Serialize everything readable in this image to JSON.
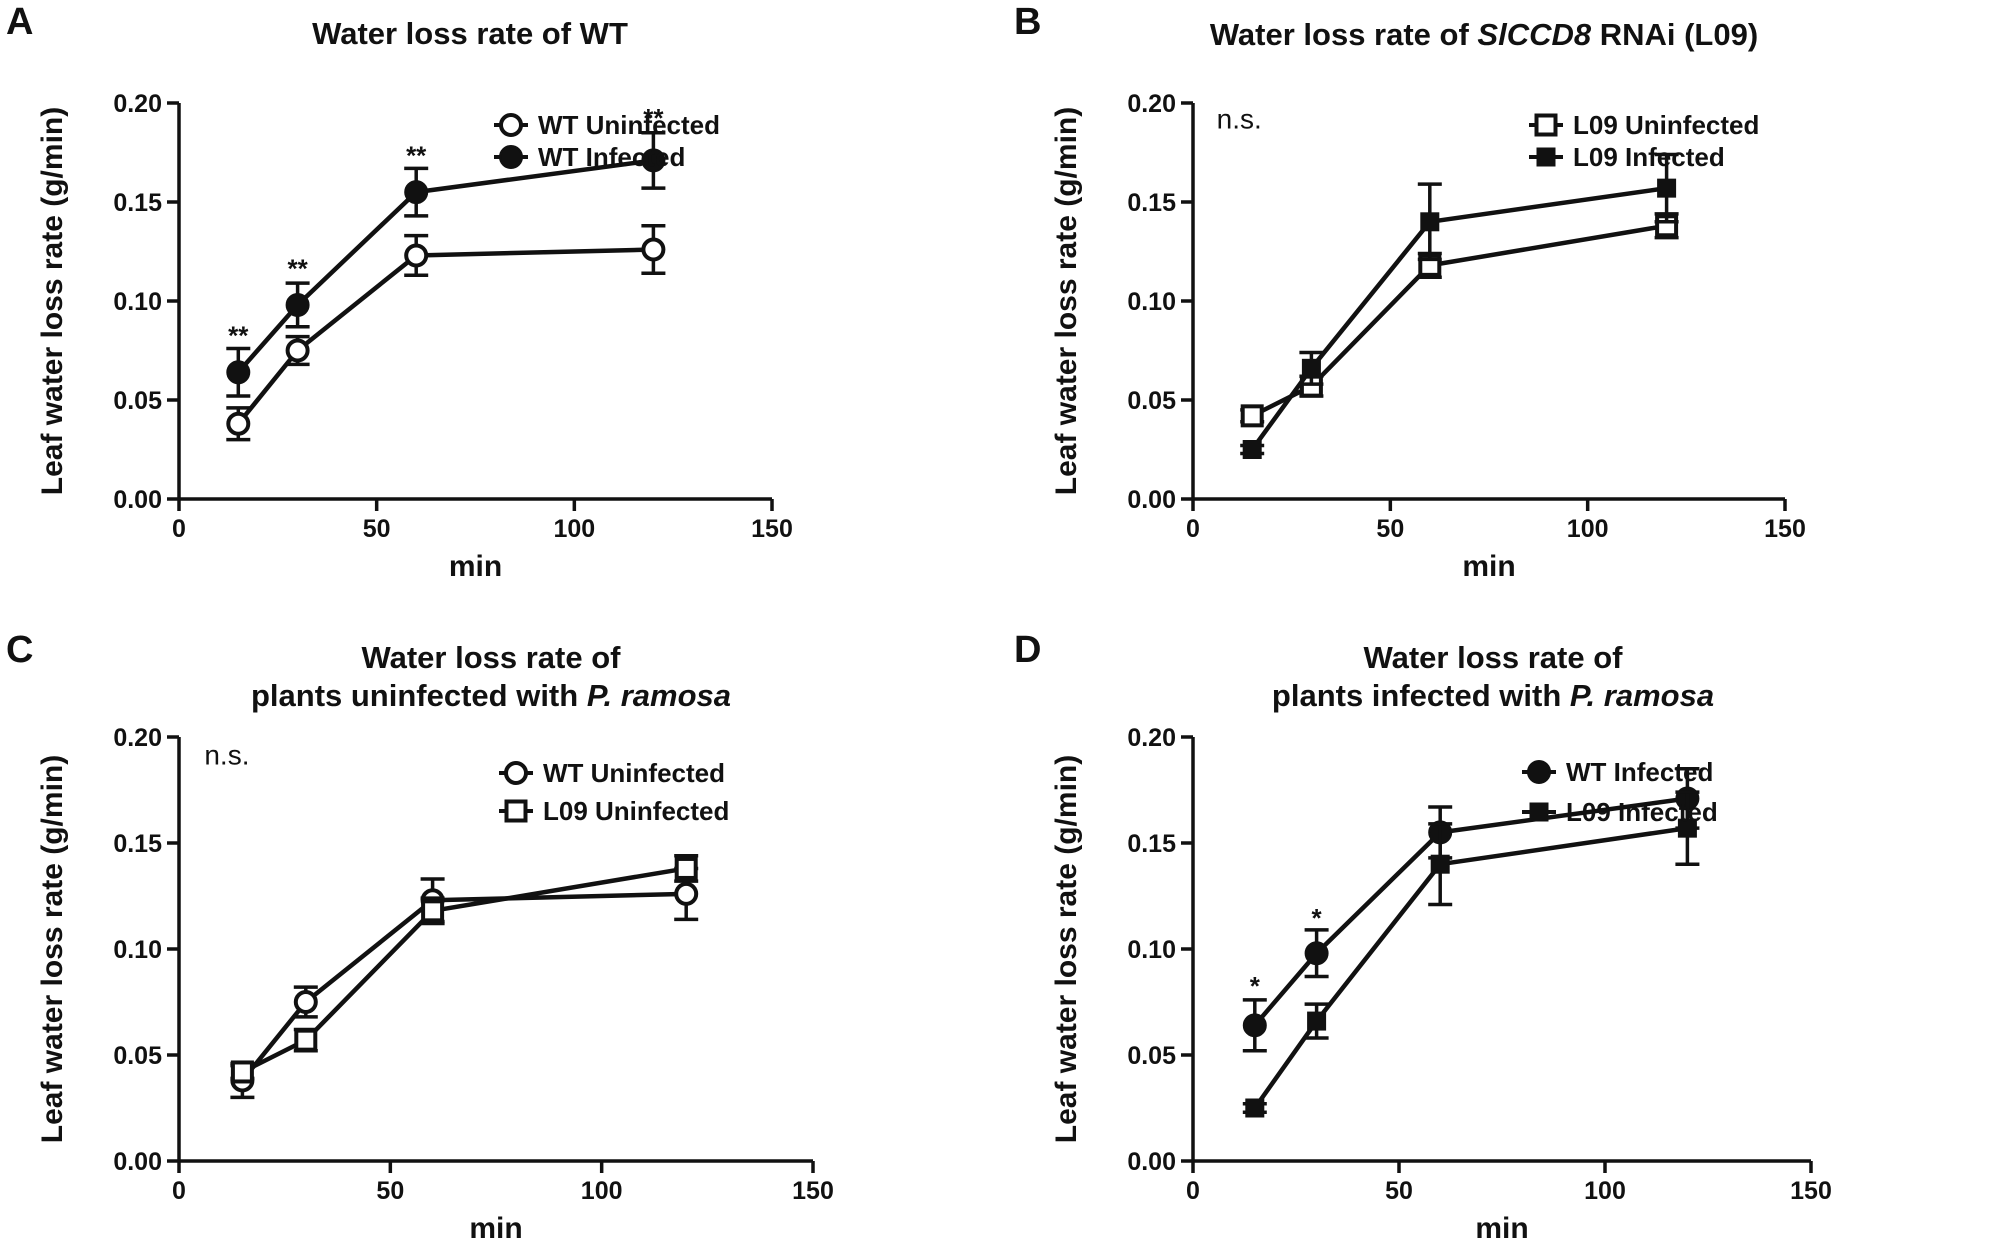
{
  "chart_data": [
    {
      "panel": "A",
      "type": "line",
      "title_lines": [
        [
          {
            "text": "Water loss rate of WT",
            "italic": false
          }
        ]
      ],
      "xlabel": "min",
      "ylabel": "Leaf water loss rate (g/min)",
      "xlim": [
        0,
        150
      ],
      "ylim": [
        0,
        0.2
      ],
      "xticks": [
        0,
        50,
        100,
        150
      ],
      "xtick_labels": [
        "0",
        "50",
        "100",
        "150"
      ],
      "yticks": [
        0,
        0.05,
        0.1,
        0.15,
        0.2
      ],
      "ytick_labels": [
        "0.00",
        "0.05",
        "0.10",
        "0.15",
        "0.20"
      ],
      "grid": false,
      "legend_position": "top-right",
      "x": [
        15,
        30,
        60,
        120
      ],
      "series": [
        {
          "name": "WT Uninfected",
          "marker": "open-circle",
          "values": [
            0.038,
            0.075,
            0.123,
            0.126
          ],
          "errors": [
            0.008,
            0.007,
            0.01,
            0.012
          ]
        },
        {
          "name": "WT Infected",
          "marker": "filled-circle",
          "values": [
            0.064,
            0.098,
            0.155,
            0.171
          ],
          "errors": [
            0.012,
            0.011,
            0.012,
            0.014
          ]
        }
      ],
      "annotations": [
        {
          "text": "**",
          "x": 15,
          "y": 0.083
        },
        {
          "text": "**",
          "x": 30,
          "y": 0.117
        },
        {
          "text": "**",
          "x": 60,
          "y": 0.174
        },
        {
          "text": "**",
          "x": 120,
          "y": 0.193
        }
      ]
    },
    {
      "panel": "B",
      "type": "line",
      "title_lines": [
        [
          {
            "text": "Water loss rate of  ",
            "italic": false
          },
          {
            "text": "SlCCD8",
            "italic": true
          },
          {
            "text": " RNAi (L09)",
            "italic": false
          }
        ]
      ],
      "xlabel": "min",
      "ylabel": "Leaf water loss rate (g/min)",
      "xlim": [
        0,
        150
      ],
      "ylim": [
        0,
        0.2
      ],
      "xticks": [
        0,
        50,
        100,
        150
      ],
      "xtick_labels": [
        "0",
        "50",
        "100",
        "150"
      ],
      "yticks": [
        0,
        0.05,
        0.1,
        0.15,
        0.2
      ],
      "ytick_labels": [
        "0.00",
        "0.05",
        "0.10",
        "0.15",
        "0.20"
      ],
      "grid": false,
      "legend_position": "top-right",
      "x": [
        15,
        30,
        60,
        120
      ],
      "series": [
        {
          "name": "L09 Uninfected",
          "marker": "open-square",
          "values": [
            0.042,
            0.057,
            0.118,
            0.138
          ],
          "errors": [
            0.003,
            0.005,
            0.006,
            0.006
          ]
        },
        {
          "name": "L09 Infected",
          "marker": "filled-square",
          "values": [
            0.025,
            0.066,
            0.14,
            0.157
          ],
          "errors": [
            0.002,
            0.008,
            0.019,
            0.017
          ]
        }
      ],
      "annotations": [
        {
          "text": "n.s.",
          "x": 6,
          "y": 0.187
        }
      ]
    },
    {
      "panel": "C",
      "type": "line",
      "title_lines": [
        [
          {
            "text": "Water loss rate of",
            "italic": false
          }
        ],
        [
          {
            "text": "plants uninfected with ",
            "italic": false
          },
          {
            "text": "P. ramosa",
            "italic": true
          }
        ]
      ],
      "xlabel": "min",
      "ylabel": "Leaf water loss rate (g/min)",
      "xlim": [
        0,
        150
      ],
      "ylim": [
        0,
        0.2
      ],
      "xticks": [
        0,
        50,
        100,
        150
      ],
      "xtick_labels": [
        "0",
        "50",
        "100",
        "150"
      ],
      "yticks": [
        0,
        0.05,
        0.1,
        0.15,
        0.2
      ],
      "ytick_labels": [
        "0.00",
        "0.05",
        "0.10",
        "0.15",
        "0.20"
      ],
      "grid": false,
      "legend_position": "top-right",
      "x": [
        15,
        30,
        60,
        120
      ],
      "series": [
        {
          "name": "WT Uninfected",
          "marker": "open-circle",
          "values": [
            0.038,
            0.075,
            0.123,
            0.126
          ],
          "errors": [
            0.008,
            0.007,
            0.01,
            0.012
          ]
        },
        {
          "name": "L09 Uninfected",
          "marker": "open-square",
          "values": [
            0.042,
            0.057,
            0.118,
            0.138
          ],
          "errors": [
            0.003,
            0.005,
            0.006,
            0.006
          ]
        }
      ],
      "annotations": [
        {
          "text": "n.s.",
          "x": 6,
          "y": 0.187
        }
      ]
    },
    {
      "panel": "D",
      "type": "line",
      "title_lines": [
        [
          {
            "text": "Water loss rate of",
            "italic": false
          }
        ],
        [
          {
            "text": "plants infected with ",
            "italic": false
          },
          {
            "text": "P. ramosa",
            "italic": true
          }
        ]
      ],
      "xlabel": "min",
      "ylabel": "Leaf water loss rate (g/min)",
      "xlim": [
        0,
        150
      ],
      "ylim": [
        0,
        0.2
      ],
      "xticks": [
        0,
        50,
        100,
        150
      ],
      "xtick_labels": [
        "0",
        "50",
        "100",
        "150"
      ],
      "yticks": [
        0,
        0.05,
        0.1,
        0.15,
        0.2
      ],
      "ytick_labels": [
        "0.00",
        "0.05",
        "0.10",
        "0.15",
        "0.20"
      ],
      "grid": false,
      "legend_position": "top-right",
      "x": [
        15,
        30,
        60,
        120
      ],
      "series": [
        {
          "name": "WT Infected",
          "marker": "filled-circle",
          "values": [
            0.064,
            0.098,
            0.155,
            0.171
          ],
          "errors": [
            0.012,
            0.011,
            0.012,
            0.014
          ]
        },
        {
          "name": "L09 Infected",
          "marker": "filled-square",
          "values": [
            0.025,
            0.066,
            0.14,
            0.157
          ],
          "errors": [
            0.002,
            0.008,
            0.019,
            0.017
          ]
        }
      ],
      "annotations": [
        {
          "text": "*",
          "x": 15,
          "y": 0.083
        },
        {
          "text": "*",
          "x": 30,
          "y": 0.115
        }
      ]
    }
  ]
}
